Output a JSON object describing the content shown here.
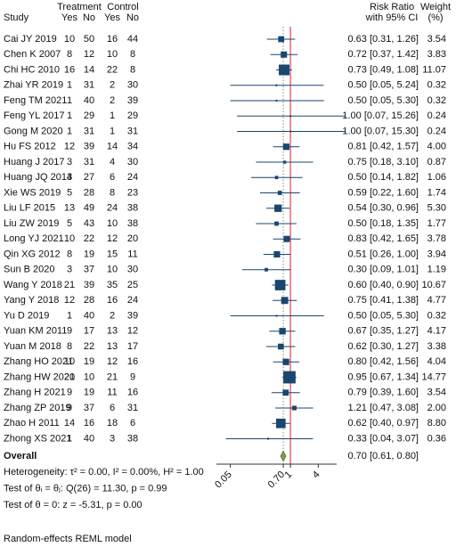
{
  "chart_data": {
    "type": "forest",
    "headers": {
      "study": "Study",
      "treatment": "Treatment",
      "control": "Control",
      "effect": "Risk Ratio",
      "effect_sub": "with 95% CI",
      "weight": "Weight",
      "weight_sub": "(%)"
    },
    "columns": [
      "Yes",
      "No",
      "Yes",
      "No"
    ],
    "categories": [
      "Cai JY 2019",
      "Chen K 2007",
      "Chi HC 2010",
      "Zhai YR 2019",
      "Feng TM 2021",
      "Feng YL 2017",
      "Gong M 2020",
      "Hu FS 2012",
      "Huang J 2017",
      "Huang JQ 2014",
      "Xie WS 2019",
      "Liu LF 2015",
      "Liu ZW 2019",
      "Long YJ 2021",
      "Qin XG 2012",
      "Sun B 2020",
      "Wang Y 2018",
      "Yang Y 2018",
      "Yu D 2019",
      "Yuan KM 2011",
      "Yuan M 2018",
      "Zhang HO 2021",
      "Zhang HW 2021",
      "Zhang H 2021",
      "Zhang ZP 2019",
      "Zhao H 2011",
      "Zhong XS 2021"
    ],
    "treatment_yes": [
      10,
      8,
      16,
      1,
      1,
      1,
      1,
      12,
      3,
      3,
      5,
      13,
      5,
      10,
      8,
      3,
      21,
      12,
      1,
      9,
      8,
      10,
      20,
      9,
      9,
      14,
      1
    ],
    "treatment_no": [
      50,
      12,
      14,
      31,
      40,
      29,
      31,
      39,
      31,
      27,
      28,
      49,
      43,
      22,
      19,
      37,
      39,
      28,
      40,
      17,
      22,
      19,
      10,
      19,
      37,
      16,
      40
    ],
    "control_yes": [
      16,
      10,
      22,
      2,
      2,
      1,
      1,
      14,
      4,
      6,
      8,
      24,
      10,
      12,
      15,
      10,
      35,
      16,
      2,
      13,
      13,
      12,
      21,
      11,
      6,
      18,
      3
    ],
    "control_no": [
      44,
      8,
      8,
      30,
      39,
      29,
      31,
      34,
      30,
      24,
      23,
      38,
      38,
      20,
      11,
      30,
      25,
      24,
      39,
      12,
      17,
      16,
      9,
      16,
      31,
      6,
      38
    ],
    "values": [
      0.63,
      0.72,
      0.73,
      0.5,
      0.5,
      1.0,
      1.0,
      0.81,
      0.75,
      0.5,
      0.59,
      0.54,
      0.5,
      0.83,
      0.51,
      0.3,
      0.6,
      0.75,
      0.5,
      0.67,
      0.62,
      0.8,
      0.95,
      0.79,
      1.21,
      0.62,
      0.33
    ],
    "ci_low": [
      0.31,
      0.37,
      0.49,
      0.05,
      0.05,
      0.07,
      0.07,
      0.42,
      0.18,
      0.14,
      0.22,
      0.3,
      0.18,
      0.42,
      0.26,
      0.09,
      0.4,
      0.41,
      0.05,
      0.35,
      0.3,
      0.42,
      0.67,
      0.39,
      0.47,
      0.4,
      0.04
    ],
    "ci_high": [
      1.26,
      1.42,
      1.08,
      5.24,
      5.3,
      15.26,
      15.3,
      1.57,
      3.1,
      1.82,
      1.6,
      0.96,
      1.35,
      1.65,
      1.0,
      1.01,
      0.9,
      1.38,
      5.3,
      1.27,
      1.27,
      1.56,
      1.34,
      1.6,
      3.08,
      0.97,
      3.07
    ],
    "value_labels": [
      "0.63 [0.31, 1.26]",
      "0.72 [0.37, 1.42]",
      "0.73 [0.49, 1.08]",
      "0.50 [0.05, 5.24]",
      "0.50 [0.05, 5.30]",
      "1.00 [0.07, 15.26]",
      "1.00 [0.07, 15.30]",
      "0.81 [0.42, 1.57]",
      "0.75 [0.18, 3.10]",
      "0.50 [0.14, 1.82]",
      "0.59 [0.22, 1.60]",
      "0.54 [0.30, 0.96]",
      "0.50 [0.18, 1.35]",
      "0.83 [0.42, 1.65]",
      "0.51 [0.26, 1.00]",
      "0.30 [0.09, 1.01]",
      "0.60 [0.40, 0.90]",
      "0.75 [0.41, 1.38]",
      "0.50 [0.05, 5.30]",
      "0.67 [0.35, 1.27]",
      "0.62 [0.30, 1.27]",
      "0.80 [0.42, 1.56]",
      "0.95 [0.67, 1.34]",
      "0.79 [0.39, 1.60]",
      "1.21 [0.47, 3.08]",
      "0.62 [0.40, 0.97]",
      "0.33 [0.04, 3.07]"
    ],
    "weights": [
      3.54,
      3.83,
      11.07,
      0.32,
      0.32,
      0.24,
      0.24,
      4.0,
      0.87,
      1.06,
      1.74,
      5.3,
      1.77,
      3.78,
      3.94,
      1.19,
      10.67,
      4.77,
      0.32,
      4.17,
      3.38,
      4.04,
      14.77,
      3.54,
      2.0,
      8.8,
      0.36
    ],
    "weight_labels": [
      "3.54",
      "3.83",
      "11.07",
      "0.32",
      "0.32",
      "0.24",
      "0.24",
      "4.00",
      "0.87",
      "1.06",
      "1.74",
      "5.30",
      "1.77",
      "3.78",
      "3.94",
      "1.19",
      "10.67",
      "4.77",
      "0.32",
      "4.17",
      "3.38",
      "4.04",
      "14.77",
      "3.54",
      "2.00",
      "8.80",
      "0.36"
    ],
    "overall": {
      "label": "Overall",
      "value": 0.7,
      "ci_low": 0.61,
      "ci_high": 0.8,
      "value_label": "0.70 [0.61, 0.80]"
    },
    "null_line": 1,
    "xscale": "log",
    "xlim": [
      0.025,
      10
    ],
    "xticks": [
      0.05,
      {
        "value": 0.7,
        "label": "0.70"
      },
      1,
      4
    ],
    "marker_color": "#1a476f",
    "diamond_color": "#7f9a48",
    "null_line_color": "#e8434f",
    "footnotes": [
      "Heterogeneity: τ² = 0.00, I² = 0.00%, H² = 1.00",
      "Test of θᵢ = θⱼ: Q(26) = 11.30, p = 0.99",
      "Test of θ = 0: z = -5.31, p = 0.00"
    ],
    "note": "Random-effects REML model"
  }
}
